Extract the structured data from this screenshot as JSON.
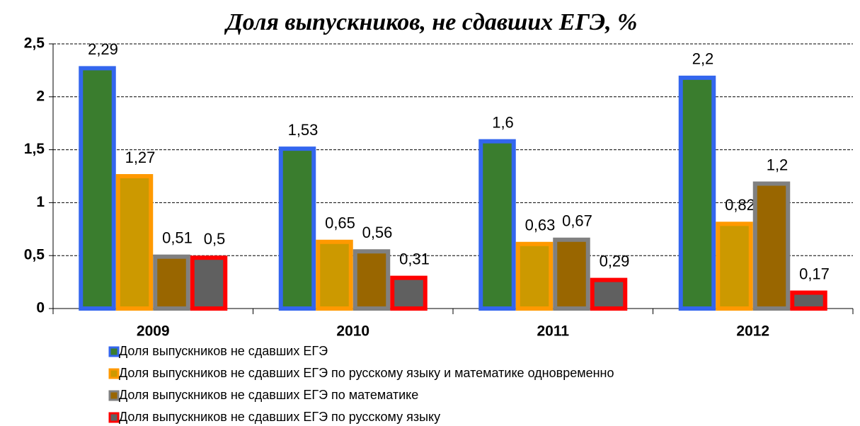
{
  "chart_data": {
    "type": "bar",
    "title": "Доля выпускников, не сдавших ЕГЭ, %",
    "categories": [
      "2009",
      "2010",
      "2011",
      "2012"
    ],
    "series": [
      {
        "name": "Доля выпускников не сдавших ЕГЭ",
        "color": "#3366ee",
        "fill": "#3a7d2e",
        "values": [
          2.29,
          1.53,
          1.6,
          2.2
        ],
        "value_labels": [
          "2,29",
          "1,53",
          "1,6",
          "2,2"
        ]
      },
      {
        "name": "Доля выпускников не сдавших ЕГЭ по русскому языку и математике одновременно",
        "color": "#ff9900",
        "fill": "#cc9900",
        "values": [
          1.27,
          0.65,
          0.63,
          0.82
        ],
        "value_labels": [
          "1,27",
          "0,65",
          "0,63",
          "0,82"
        ]
      },
      {
        "name": "Доля выпускников не сдавших ЕГЭ по математике",
        "color": "#808080",
        "fill": "#996600",
        "values": [
          0.51,
          0.56,
          0.67,
          1.2
        ],
        "value_labels": [
          "0,51",
          "0,56",
          "0,67",
          "1,2"
        ]
      },
      {
        "name": "Доля выпускников не сдавших ЕГЭ по русскому языку",
        "color": "#ff0000",
        "fill": "#606060",
        "values": [
          0.5,
          0.31,
          0.29,
          0.17
        ],
        "value_labels": [
          "0,5",
          "0,31",
          "0,29",
          "0,17"
        ]
      }
    ],
    "ylim": [
      0,
      2.5
    ],
    "yticks": [
      0,
      {
        "value": 0.5,
        "label": "0,5"
      },
      1,
      {
        "value": 1.5,
        "label": "1,5"
      },
      2,
      {
        "value": 2.5,
        "label": "2,5"
      }
    ],
    "grid": true
  }
}
